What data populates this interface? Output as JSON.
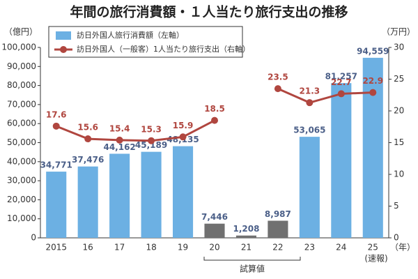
{
  "chart_data": {
    "type": "bar-line",
    "title": "年間の旅行消費額・１人当たり旅行支出の推移",
    "y_unit": "（億円）",
    "y2_unit": "（万円）",
    "x_unit": "（年）",
    "x_note": "(速報)",
    "bracket_label": "試算値",
    "categories": [
      "2015",
      "16",
      "17",
      "18",
      "19",
      "20",
      "21",
      "22",
      "23",
      "24",
      "25"
    ],
    "series": [
      {
        "name": "訪日外国人旅行消費額（左軸）",
        "type": "bar",
        "color": "#6cb0e3",
        "colors": [
          "#6cb0e3",
          "#6cb0e3",
          "#6cb0e3",
          "#6cb0e3",
          "#6cb0e3",
          "#707070",
          "#707070",
          "#707070",
          "#6cb0e3",
          "#6cb0e3",
          "#6cb0e3"
        ],
        "values": [
          34771,
          37476,
          44162,
          45189,
          48135,
          7446,
          1208,
          8987,
          53065,
          81257,
          94559
        ],
        "value_labels": [
          "34,771",
          "37,476",
          "44,162",
          "45,189",
          "48,135",
          "7,446",
          "1,208",
          "8,987",
          "53,065",
          "81,257",
          "94,559"
        ]
      },
      {
        "name": "訪日外国人（一般客）1人当たり旅行支出（右軸）",
        "type": "line",
        "axis": "y2",
        "color": "#b0463f",
        "values": [
          17.6,
          15.6,
          15.4,
          15.3,
          15.9,
          18.5,
          null,
          23.5,
          21.3,
          22.7,
          22.9
        ]
      }
    ],
    "ylim": [
      0,
      100000
    ],
    "yticks": [
      0,
      {
        "value": 10000,
        "label": "10,000"
      },
      {
        "value": 20000,
        "label": "20,000"
      },
      {
        "value": 30000,
        "label": "30,000"
      },
      {
        "value": 40000,
        "label": "40,000"
      },
      {
        "value": 50000,
        "label": "50,000"
      },
      {
        "value": 60000,
        "label": "60,000"
      },
      {
        "value": 70000,
        "label": "70,000"
      },
      {
        "value": 80000,
        "label": "80,000"
      },
      {
        "value": 90000,
        "label": "90,000"
      },
      {
        "value": 100000,
        "label": "100,000"
      }
    ],
    "y2lim": [
      0,
      30
    ],
    "y2ticks": [
      0,
      5,
      10,
      15,
      20,
      25,
      30
    ],
    "grid": false
  }
}
